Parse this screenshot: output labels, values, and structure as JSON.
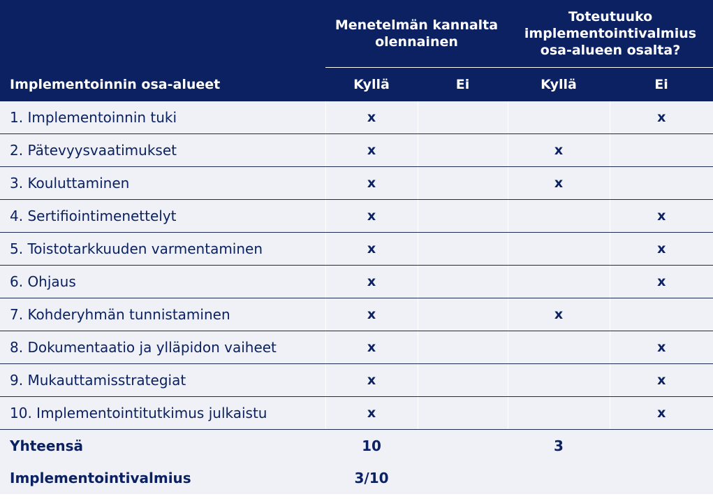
{
  "header": {
    "group1": "Menetelmän kannalta olennainen",
    "group2": "Toteutuuko implementointivalmius osa-alueen osalta?",
    "first_col": "Implementoinnin osa-alueet",
    "yes1": "Kyllä",
    "no1": "Ei",
    "yes2": "Kyllä",
    "no2": "Ei"
  },
  "rows": [
    {
      "label": "1. Implementoinnin tuki",
      "c1": "x",
      "c2": "",
      "c3": "",
      "c4": "x"
    },
    {
      "label": "2. Pätevyysvaatimukset",
      "c1": "x",
      "c2": "",
      "c3": "x",
      "c4": ""
    },
    {
      "label": "3. Kouluttaminen",
      "c1": "x",
      "c2": "",
      "c3": "x",
      "c4": ""
    },
    {
      "label": "4. Sertifiointimenettelyt",
      "c1": "x",
      "c2": "",
      "c3": "",
      "c4": "x"
    },
    {
      "label": "5. Toistotarkkuuden varmentaminen",
      "c1": "x",
      "c2": "",
      "c3": "",
      "c4": "x"
    },
    {
      "label": "6. Ohjaus",
      "c1": "x",
      "c2": "",
      "c3": "",
      "c4": "x"
    },
    {
      "label": "7. Kohderyhmän tunnistaminen",
      "c1": "x",
      "c2": "",
      "c3": "x",
      "c4": ""
    },
    {
      "label": "8. Dokumentaatio ja ylläpidon vaiheet",
      "c1": "x",
      "c2": "",
      "c3": "",
      "c4": "x"
    },
    {
      "label": "9. Mukauttamisstrategiat",
      "c1": "x",
      "c2": "",
      "c3": "",
      "c4": "x"
    },
    {
      "label": "10. Implementointitutkimus julkaistu",
      "c1": "x",
      "c2": "",
      "c3": "",
      "c4": "x"
    }
  ],
  "totals": {
    "label": "Yhteensä",
    "c1": "10",
    "c3": "3"
  },
  "readiness": {
    "label": "Implementointivalmius",
    "value": "3/10"
  },
  "colors": {
    "header_bg": "#0b2161",
    "row_bg": "#eff1f6",
    "text": "#0b2161"
  }
}
